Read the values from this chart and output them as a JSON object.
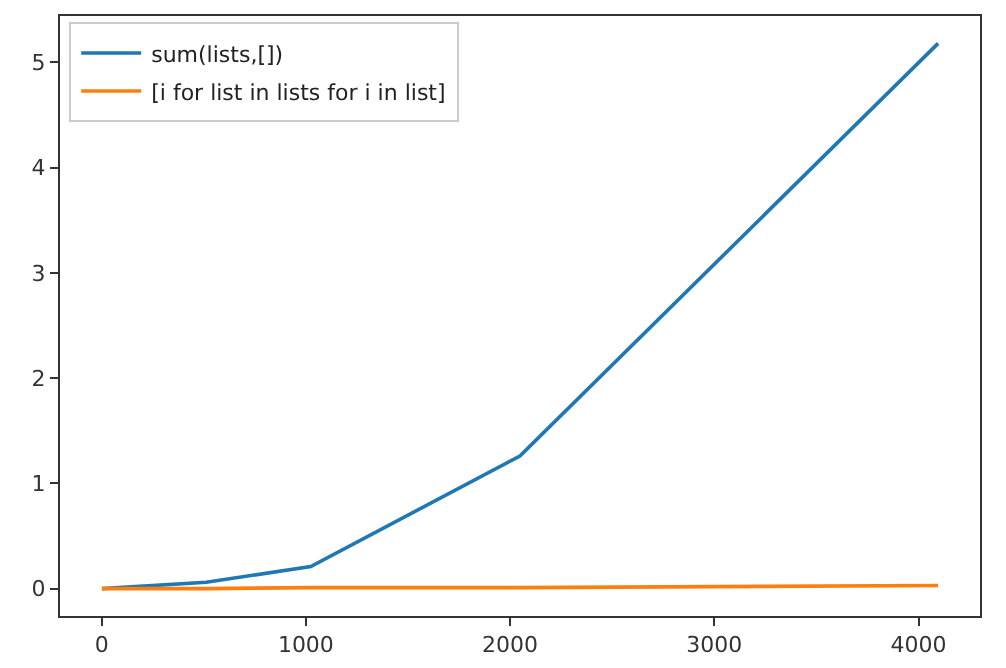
{
  "chart_data": {
    "type": "line",
    "x": [
      1,
      512,
      1024,
      2048,
      4096
    ],
    "series": [
      {
        "name": "sum(lists,[])",
        "color": "#1f77b4",
        "values": [
          0,
          0.06,
          0.21,
          1.26,
          5.18
        ]
      },
      {
        "name": "[i for list in lists for i in list]",
        "color": "#ff7f0e",
        "values": [
          0,
          0,
          0.01,
          0.01,
          0.03
        ]
      }
    ],
    "xlim": [
      -204,
      4301
    ],
    "xticks": [
      0,
      1000,
      2000,
      3000,
      4000
    ],
    "ylim": [
      -0.26,
      5.44
    ],
    "yticks": [
      0,
      1,
      2,
      3,
      4,
      5
    ],
    "grid": false,
    "legend": "top left",
    "marker": "none",
    "line_style": "solid"
  }
}
